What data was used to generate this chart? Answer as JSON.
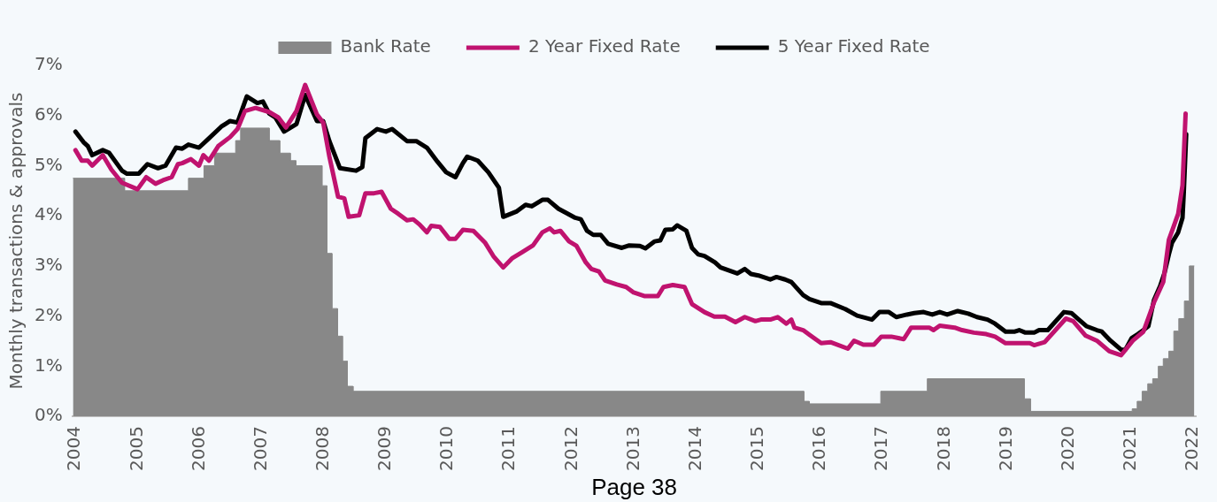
{
  "chart_data": {
    "type": "line",
    "ylabel": "Monthly transactions & approvals",
    "annotations": [
      "Page 38"
    ],
    "legend": "top",
    "marker": "none",
    "line_style": "solid",
    "xlim": [
      2003.95,
      2022.05
    ],
    "xticks": [
      2004,
      2005,
      2006,
      2007,
      2008,
      2009,
      2010,
      2011,
      2012,
      2013,
      2014,
      2015,
      2016,
      2017,
      2018,
      2019,
      2020,
      2021,
      2022
    ],
    "ylim": [
      0,
      7
    ],
    "yticks": [
      {
        "value": 0,
        "label": "0%"
      },
      {
        "value": 1,
        "label": "1%"
      },
      {
        "value": 2,
        "label": "2%"
      },
      {
        "value": 3,
        "label": "3%"
      },
      {
        "value": 4,
        "label": "4%"
      },
      {
        "value": 5,
        "label": "5%"
      },
      {
        "value": 6,
        "label": "6%"
      },
      {
        "value": 7,
        "label": "7%"
      }
    ],
    "series": [
      {
        "name": "Bank Rate",
        "type": "area",
        "color": "#888888",
        "x": [
          2003.96,
          2004.79,
          2004.79,
          2005.82,
          2005.82,
          2006.07,
          2006.07,
          2006.24,
          2006.24,
          2006.58,
          2006.58,
          2006.66,
          2006.66,
          2007.12,
          2007.12,
          2007.29,
          2007.29,
          2007.46,
          2007.46,
          2007.55,
          2007.55,
          2007.97,
          2007.97,
          2008.05,
          2008.05,
          2008.13,
          2008.13,
          2008.22,
          2008.22,
          2008.3,
          2008.3,
          2008.38,
          2008.38,
          2008.47,
          2008.47,
          2015.73,
          2015.73,
          2015.82,
          2015.82,
          2016.97,
          2016.97,
          2017.72,
          2017.72,
          2019.28,
          2019.28,
          2019.38,
          2019.38,
          2021.02,
          2021.02,
          2021.1,
          2021.1,
          2021.18,
          2021.18,
          2021.27,
          2021.27,
          2021.35,
          2021.35,
          2021.44,
          2021.44,
          2021.52,
          2021.52,
          2021.61,
          2021.61,
          2021.69,
          2021.69,
          2021.77,
          2021.77,
          2021.86,
          2021.86,
          2021.94,
          2021.94,
          2022.02
        ],
        "values": [
          4.75,
          4.75,
          4.5,
          4.5,
          4.75,
          4.75,
          5.0,
          5.0,
          5.25,
          5.25,
          5.5,
          5.5,
          5.75,
          5.75,
          5.5,
          5.5,
          5.25,
          5.25,
          5.1,
          5.1,
          5.0,
          5.0,
          4.6,
          4.6,
          3.25,
          3.25,
          2.15,
          2.15,
          1.6,
          1.6,
          1.1,
          1.1,
          0.6,
          0.6,
          0.5,
          0.5,
          0.3,
          0.3,
          0.25,
          0.25,
          0.5,
          0.5,
          0.75,
          0.75,
          0.35,
          0.35,
          0.1,
          0.1,
          0.15,
          0.15,
          0.3,
          0.3,
          0.5,
          0.5,
          0.65,
          0.65,
          0.75,
          0.75,
          1.0,
          1.0,
          1.15,
          1.15,
          1.3,
          1.3,
          1.7,
          1.7,
          1.95,
          1.95,
          2.3,
          2.3,
          3.0,
          3.0
        ]
      },
      {
        "name": "2 Year Fixed Rate",
        "color": "#c0136f",
        "x": [
          2004.0,
          2004.1,
          2004.2,
          2004.27,
          2004.44,
          2004.58,
          2004.75,
          2005.0,
          2005.14,
          2005.29,
          2005.41,
          2005.55,
          2005.65,
          2005.72,
          2005.86,
          2005.99,
          2006.06,
          2006.15,
          2006.3,
          2006.49,
          2006.61,
          2006.73,
          2006.9,
          2007.12,
          2007.27,
          2007.39,
          2007.56,
          2007.7,
          2007.89,
          2007.99,
          2008.09,
          2008.23,
          2008.33,
          2008.4,
          2008.57,
          2008.67,
          2008.81,
          2008.93,
          2009.08,
          2009.2,
          2009.34,
          2009.44,
          2009.54,
          2009.66,
          2009.73,
          2009.87,
          2010.02,
          2010.12,
          2010.24,
          2010.41,
          2010.6,
          2010.74,
          2010.89,
          2011.03,
          2011.2,
          2011.37,
          2011.52,
          2011.64,
          2011.71,
          2011.81,
          2011.95,
          2012.07,
          2012.22,
          2012.31,
          2012.43,
          2012.53,
          2012.72,
          2012.87,
          2012.99,
          2013.16,
          2013.38,
          2013.47,
          2013.62,
          2013.81,
          2013.93,
          2014.13,
          2014.29,
          2014.46,
          2014.63,
          2014.78,
          2014.95,
          2015.04,
          2015.19,
          2015.31,
          2015.45,
          2015.53,
          2015.58,
          2015.72,
          2015.84,
          2016.01,
          2016.16,
          2016.44,
          2016.54,
          2016.69,
          2016.86,
          2016.98,
          2017.14,
          2017.34,
          2017.46,
          2017.75,
          2017.82,
          2017.92,
          2018.16,
          2018.28,
          2018.47,
          2018.67,
          2018.81,
          2018.98,
          2019.37,
          2019.44,
          2019.61,
          2019.95,
          2020.07,
          2020.27,
          2020.45,
          2020.65,
          2020.84,
          2021.03,
          2021.2,
          2021.37,
          2021.52,
          2021.61,
          2021.76,
          2021.83,
          2021.88
        ],
        "values": [
          5.31,
          5.1,
          5.1,
          5.0,
          5.21,
          4.92,
          4.66,
          4.53,
          4.77,
          4.64,
          4.71,
          4.77,
          5.03,
          5.05,
          5.13,
          5.0,
          5.21,
          5.1,
          5.39,
          5.57,
          5.73,
          6.09,
          6.15,
          6.07,
          5.96,
          5.76,
          6.09,
          6.61,
          6.02,
          5.86,
          5.18,
          4.38,
          4.35,
          3.98,
          4.01,
          4.45,
          4.45,
          4.48,
          4.14,
          4.04,
          3.91,
          3.93,
          3.83,
          3.67,
          3.8,
          3.78,
          3.54,
          3.54,
          3.72,
          3.7,
          3.46,
          3.18,
          2.97,
          3.15,
          3.28,
          3.41,
          3.67,
          3.75,
          3.67,
          3.7,
          3.49,
          3.4,
          3.07,
          2.94,
          2.89,
          2.71,
          2.63,
          2.58,
          2.47,
          2.4,
          2.4,
          2.58,
          2.62,
          2.58,
          2.24,
          2.08,
          1.99,
          1.99,
          1.88,
          1.98,
          1.9,
          1.93,
          1.93,
          1.98,
          1.85,
          1.93,
          1.77,
          1.72,
          1.61,
          1.46,
          1.48,
          1.35,
          1.51,
          1.43,
          1.43,
          1.59,
          1.59,
          1.54,
          1.77,
          1.77,
          1.72,
          1.81,
          1.77,
          1.72,
          1.67,
          1.64,
          1.59,
          1.46,
          1.46,
          1.42,
          1.48,
          1.95,
          1.9,
          1.61,
          1.51,
          1.3,
          1.22,
          1.51,
          1.69,
          2.27,
          2.68,
          3.52,
          4.04,
          4.61,
          6.04
        ]
      },
      {
        "name": "5 Year Fixed Rate",
        "color": "#000000",
        "x": [
          2004.0,
          2004.13,
          2004.2,
          2004.27,
          2004.44,
          2004.54,
          2004.75,
          2004.83,
          2005.02,
          2005.16,
          2005.33,
          2005.45,
          2005.62,
          2005.72,
          2005.82,
          2005.99,
          2006.13,
          2006.35,
          2006.49,
          2006.61,
          2006.76,
          2006.93,
          2007.02,
          2007.12,
          2007.22,
          2007.36,
          2007.56,
          2007.7,
          2007.89,
          2007.99,
          2008.09,
          2008.26,
          2008.52,
          2008.62,
          2008.67,
          2008.86,
          2009.0,
          2009.1,
          2009.34,
          2009.49,
          2009.66,
          2009.83,
          2009.97,
          2010.12,
          2010.24,
          2010.31,
          2010.48,
          2010.65,
          2010.82,
          2010.89,
          2011.11,
          2011.25,
          2011.35,
          2011.52,
          2011.61,
          2011.78,
          2011.9,
          2012.05,
          2012.14,
          2012.24,
          2012.34,
          2012.46,
          2012.58,
          2012.8,
          2012.92,
          2013.09,
          2013.18,
          2013.33,
          2013.42,
          2013.5,
          2013.62,
          2013.69,
          2013.84,
          2013.93,
          2014.03,
          2014.13,
          2014.3,
          2014.39,
          2014.66,
          2014.78,
          2014.88,
          2015.0,
          2015.19,
          2015.29,
          2015.43,
          2015.53,
          2015.72,
          2015.82,
          2016.01,
          2016.16,
          2016.4,
          2016.59,
          2016.83,
          2016.95,
          2017.1,
          2017.22,
          2017.39,
          2017.51,
          2017.66,
          2017.8,
          2017.92,
          2018.04,
          2018.21,
          2018.38,
          2018.52,
          2018.69,
          2018.81,
          2018.98,
          2019.13,
          2019.2,
          2019.3,
          2019.44,
          2019.52,
          2019.66,
          2019.92,
          2020.04,
          2020.16,
          2020.28,
          2020.45,
          2020.53,
          2020.67,
          2020.84,
          2020.91,
          2021.01,
          2021.11,
          2021.2,
          2021.28,
          2021.37,
          2021.47,
          2021.54,
          2021.61,
          2021.66,
          2021.76,
          2021.83,
          2021.85,
          2021.89
        ],
        "values": [
          5.68,
          5.47,
          5.39,
          5.21,
          5.31,
          5.26,
          4.9,
          4.84,
          4.84,
          5.03,
          4.95,
          5.0,
          5.36,
          5.34,
          5.42,
          5.36,
          5.52,
          5.78,
          5.89,
          5.86,
          6.38,
          6.25,
          6.28,
          6.04,
          5.96,
          5.68,
          5.83,
          6.41,
          5.89,
          5.89,
          5.49,
          4.95,
          4.9,
          4.97,
          5.55,
          5.73,
          5.68,
          5.73,
          5.49,
          5.49,
          5.36,
          5.08,
          4.87,
          4.77,
          5.05,
          5.18,
          5.1,
          4.87,
          4.56,
          3.98,
          4.09,
          4.22,
          4.19,
          4.32,
          4.32,
          4.14,
          4.06,
          3.96,
          3.93,
          3.7,
          3.62,
          3.62,
          3.44,
          3.36,
          3.41,
          3.4,
          3.35,
          3.49,
          3.51,
          3.72,
          3.73,
          3.81,
          3.7,
          3.36,
          3.23,
          3.2,
          3.07,
          2.97,
          2.85,
          2.94,
          2.84,
          2.81,
          2.73,
          2.78,
          2.73,
          2.68,
          2.42,
          2.34,
          2.26,
          2.26,
          2.14,
          2.01,
          1.93,
          2.08,
          2.08,
          1.98,
          2.03,
          2.06,
          2.08,
          2.03,
          2.08,
          2.03,
          2.1,
          2.05,
          1.98,
          1.93,
          1.85,
          1.69,
          1.69,
          1.72,
          1.67,
          1.67,
          1.72,
          1.72,
          2.08,
          2.06,
          1.93,
          1.8,
          1.72,
          1.69,
          1.51,
          1.33,
          1.33,
          1.56,
          1.64,
          1.72,
          1.8,
          2.32,
          2.6,
          2.86,
          3.23,
          3.46,
          3.67,
          3.96,
          4.45,
          5.63
        ]
      }
    ]
  }
}
